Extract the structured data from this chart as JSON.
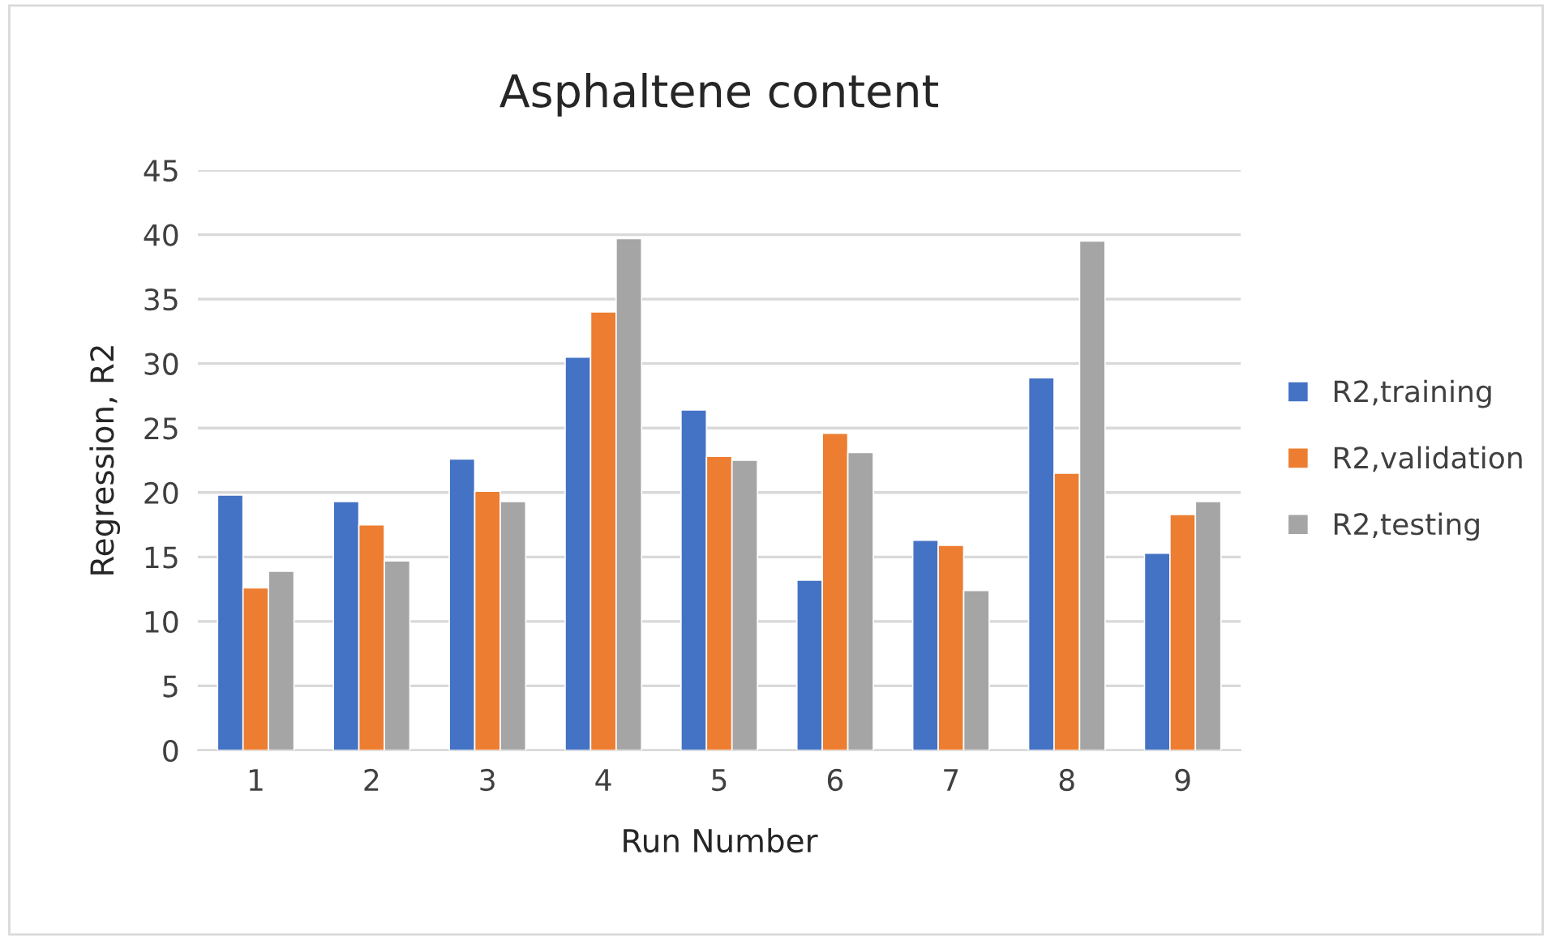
{
  "chart_data": {
    "type": "bar",
    "title": "Asphaltene content",
    "xlabel": "Run Number",
    "ylabel": "Regression, R2",
    "categories": [
      "1",
      "2",
      "3",
      "4",
      "5",
      "6",
      "7",
      "8",
      "9"
    ],
    "series": [
      {
        "name": "R2,training",
        "color": "#4472c4",
        "values": [
          19.8,
          19.3,
          22.6,
          30.5,
          26.4,
          13.2,
          16.3,
          28.9,
          15.3
        ]
      },
      {
        "name": "R2,validation",
        "color": "#ed7d31",
        "values": [
          12.6,
          17.5,
          20.1,
          34.0,
          22.8,
          24.6,
          15.9,
          21.5,
          18.3
        ]
      },
      {
        "name": "R2,testing",
        "color": "#a5a5a5",
        "values": [
          13.9,
          14.7,
          19.3,
          39.7,
          22.5,
          23.1,
          12.4,
          39.5,
          19.3
        ]
      }
    ],
    "ylim": [
      0,
      45
    ],
    "yticks": [
      0,
      5,
      10,
      15,
      20,
      25,
      30,
      35,
      40,
      45
    ],
    "grid": "y",
    "legend": "right"
  }
}
